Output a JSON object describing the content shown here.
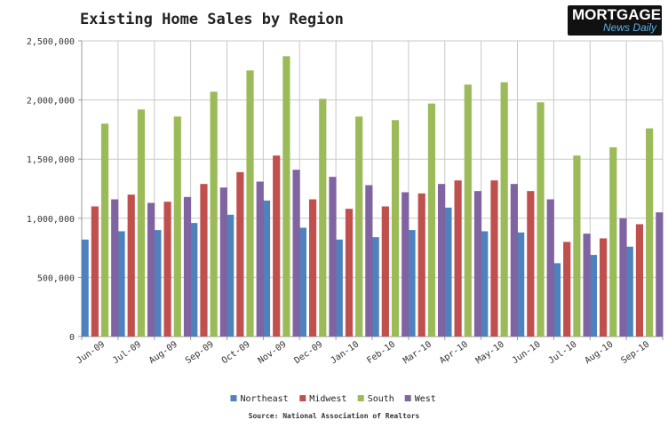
{
  "header": {
    "title": "Existing Home Sales by Region",
    "logo_top": "MORTGAGE",
    "logo_bottom": "News Daily"
  },
  "source": "Source: National Association of Realtors",
  "colors": {
    "Northeast": "#4f81bd",
    "Midwest": "#c0504d",
    "South": "#9bbb59",
    "West": "#8064a2",
    "grid": "#c8c8c8",
    "axis": "#999999"
  },
  "chart_data": {
    "type": "bar",
    "title": "Existing Home Sales by Region",
    "xlabel": "",
    "ylabel": "",
    "ylim": [
      0,
      2500000
    ],
    "yticks": [
      0,
      500000,
      1000000,
      1500000,
      2000000,
      2500000
    ],
    "ytick_labels": [
      "0",
      "500,000",
      "1,000,000",
      "1,500,000",
      "2,000,000",
      "2,500,000"
    ],
    "grid": true,
    "legend_position": "bottom",
    "categories": [
      "Jun-09",
      "Jul-09",
      "Aug-09",
      "Sep-09",
      "Oct-09",
      "Nov-09",
      "Dec-09",
      "Jan-10",
      "Feb-10",
      "Mar-10",
      "Apr-10",
      "May-10",
      "Jun-10",
      "Jul-10",
      "Aug-10",
      "Sep-10"
    ],
    "series": [
      {
        "name": "Northeast",
        "values": [
          820000,
          890000,
          900000,
          960000,
          1030000,
          1150000,
          920000,
          820000,
          840000,
          900000,
          1090000,
          890000,
          880000,
          620000,
          690000,
          760000
        ]
      },
      {
        "name": "Midwest",
        "values": [
          1100000,
          1200000,
          1140000,
          1290000,
          1390000,
          1530000,
          1160000,
          1080000,
          1100000,
          1210000,
          1320000,
          1320000,
          1230000,
          800000,
          830000,
          950000
        ]
      },
      {
        "name": "South",
        "values": [
          1800000,
          1920000,
          1860000,
          2070000,
          2250000,
          2370000,
          2010000,
          1860000,
          1830000,
          1970000,
          2130000,
          2150000,
          1980000,
          1530000,
          1600000,
          1760000
        ]
      },
      {
        "name": "West",
        "values": [
          1160000,
          1130000,
          1180000,
          1260000,
          1310000,
          1410000,
          1350000,
          1280000,
          1220000,
          1290000,
          1230000,
          1290000,
          1160000,
          870000,
          1000000,
          1050000
        ]
      }
    ]
  }
}
